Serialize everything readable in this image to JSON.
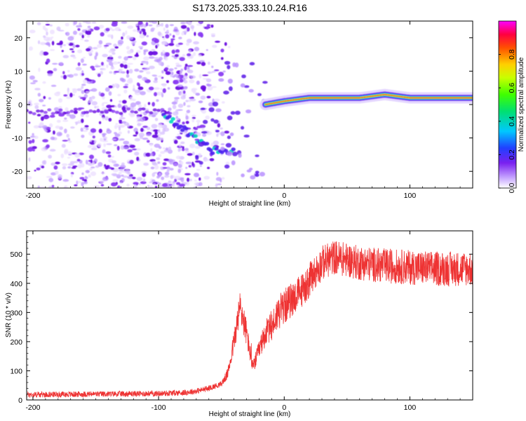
{
  "title": "S173.2025.333.10.24.R16",
  "chart_data": [
    {
      "type": "heatmap",
      "name": "spectrogram",
      "xlabel": "Height of straight line (km)",
      "ylabel": "Frequency (Hz)",
      "xlim": [
        -205,
        150
      ],
      "ylim": [
        -25,
        25
      ],
      "xticks": [
        -200,
        -100,
        0,
        100
      ],
      "yticks": [
        -20,
        -10,
        0,
        10,
        20
      ],
      "colorbar": {
        "label": "Normalized spectral amplitude",
        "range": [
          0,
          1
        ],
        "ticks": [
          0.0,
          0.2,
          0.4,
          0.6,
          0.8
        ],
        "tick_labels": [
          "0.0",
          "0.2",
          "0.4",
          "0.6",
          "0.8"
        ]
      },
      "features": {
        "noise_region_x": [
          -205,
          -80
        ],
        "descending_track": {
          "x": [
            -95,
            -85,
            -75,
            -65,
            -55
          ],
          "y": [
            -3,
            -6,
            -9,
            -12,
            -14
          ]
        },
        "tone_line": {
          "x": [
            -15,
            0,
            20,
            40,
            60,
            80,
            100,
            120,
            150
          ],
          "y": [
            0,
            1,
            2,
            2,
            2,
            3,
            2,
            2,
            2
          ]
        }
      }
    },
    {
      "type": "line",
      "name": "snr",
      "xlabel": "Height of straight line (km)",
      "ylabel": "SNR (10 * v/v)",
      "xlim": [
        -205,
        150
      ],
      "ylim": [
        0,
        580
      ],
      "xticks": [
        -200,
        -100,
        0,
        100
      ],
      "yticks": [
        0,
        100,
        200,
        300,
        400,
        500
      ],
      "color": "#ee3333",
      "envelope": {
        "x": [
          -205,
          -150,
          -100,
          -80,
          -70,
          -60,
          -50,
          -45,
          -40,
          -35,
          -30,
          -25,
          -20,
          -15,
          -10,
          -5,
          0,
          5,
          10,
          15,
          20,
          25,
          30,
          40,
          50,
          60,
          80,
          100,
          120,
          150
        ],
        "y": [
          18,
          20,
          22,
          25,
          30,
          40,
          55,
          90,
          200,
          320,
          230,
          110,
          170,
          230,
          250,
          300,
          320,
          340,
          360,
          380,
          410,
          440,
          470,
          490,
          480,
          470,
          460,
          455,
          450,
          450
        ]
      },
      "noise_amplitude": 60
    }
  ]
}
